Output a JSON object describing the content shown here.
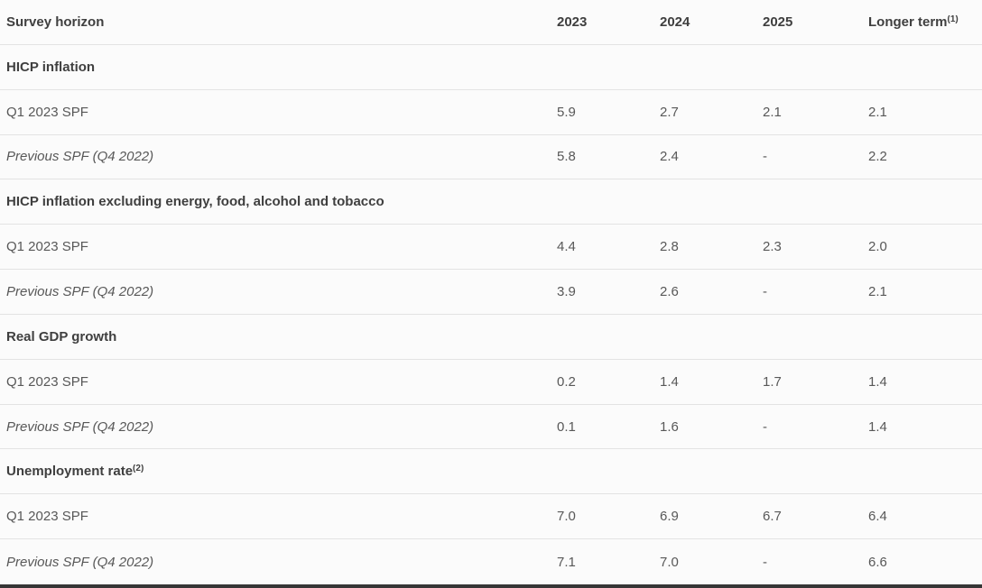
{
  "page": {
    "background_color": "#fbfbfb",
    "row_border_color": "#e3e3e3",
    "heading_text_color": "#3f3f3f",
    "body_text_color": "#585858",
    "bottom_bar_color": "#363636"
  },
  "table": {
    "header": {
      "label": "Survey horizon",
      "year_cols": [
        "2023",
        "2024",
        "2025"
      ],
      "longer_term_label": "Longer term",
      "longer_term_sup": "(1)"
    },
    "sections": [
      {
        "title": "HICP inflation",
        "title_sup": "",
        "rows": [
          {
            "label": "Q1 2023 SPF",
            "values": [
              "5.9",
              "2.7",
              "2.1",
              "2.1"
            ]
          },
          {
            "label": "Previous SPF (Q4 2022)",
            "values": [
              "5.8",
              "2.4",
              "-",
              "2.2"
            ]
          }
        ]
      },
      {
        "title": "HICP inflation excluding energy, food, alcohol and tobacco",
        "title_sup": "",
        "rows": [
          {
            "label": "Q1 2023 SPF",
            "values": [
              "4.4",
              "2.8",
              "2.3",
              "2.0"
            ]
          },
          {
            "label": "Previous SPF (Q4 2022)",
            "values": [
              "3.9",
              "2.6",
              "-",
              "2.1"
            ]
          }
        ]
      },
      {
        "title": "Real GDP growth",
        "title_sup": "",
        "rows": [
          {
            "label": "Q1 2023 SPF",
            "values": [
              "0.2",
              "1.4",
              "1.7",
              "1.4"
            ]
          },
          {
            "label": "Previous SPF (Q4 2022)",
            "values": [
              "0.1",
              "1.6",
              "-",
              "1.4"
            ]
          }
        ]
      },
      {
        "title": "Unemployment rate",
        "title_sup": "(2)",
        "rows": [
          {
            "label": "Q1 2023 SPF",
            "values": [
              "7.0",
              "6.9",
              "6.7",
              "6.4"
            ]
          },
          {
            "label": "Previous SPF (Q4 2022)",
            "values": [
              "7.1",
              "7.0",
              "-",
              "6.6"
            ]
          }
        ]
      }
    ]
  }
}
